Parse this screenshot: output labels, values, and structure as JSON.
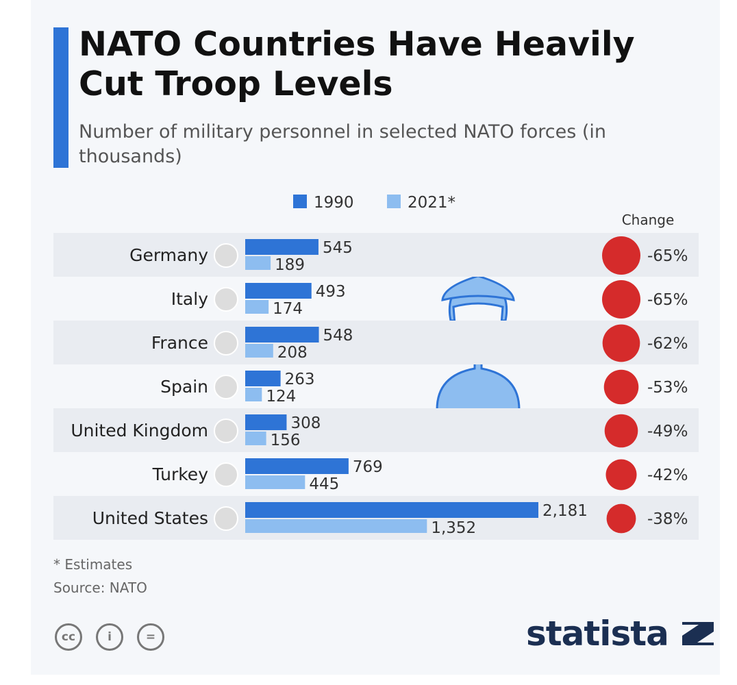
{
  "header": {
    "title": "NATO Countries Have Heavily Cut Troop Levels",
    "subtitle": "Number of military personnel in selected NATO forces (in thousands)"
  },
  "footer": {
    "note": "* Estimates",
    "source": "Source: NATO",
    "brand": "statista",
    "license_icons": [
      "cc-icon",
      "attribution-icon",
      "no-derivatives-icon"
    ]
  },
  "colors": {
    "y1990": "#2e74d6",
    "y2021": "#8dbdf0",
    "change": "#d52b2b",
    "accent": "#2e74d6"
  },
  "chart_data": {
    "type": "bar",
    "orientation": "horizontal",
    "title": "NATO Countries Have Heavily Cut Troop Levels",
    "subtitle": "Number of military personnel in selected NATO forces (in thousands)",
    "categories": [
      "Germany",
      "Italy",
      "France",
      "Spain",
      "United Kingdom",
      "Turkey",
      "United States"
    ],
    "series": [
      {
        "name": "1990",
        "values": [
          545,
          493,
          548,
          263,
          308,
          769,
          2181
        ],
        "labels": [
          "545",
          "493",
          "548",
          "263",
          "308",
          "769",
          "2,181"
        ]
      },
      {
        "name": "2021*",
        "values": [
          189,
          174,
          208,
          124,
          156,
          445,
          1352
        ],
        "labels": [
          "189",
          "174",
          "208",
          "124",
          "156",
          "445",
          "1,352"
        ]
      }
    ],
    "change_header": "Change",
    "change": [
      -65,
      -65,
      -62,
      -53,
      -49,
      -42,
      -38
    ],
    "change_labels": [
      "-65%",
      "-65%",
      "-62%",
      "-53%",
      "-49%",
      "-42%",
      "-38%"
    ],
    "legend": [
      "1990",
      "2021*"
    ],
    "legend_position": "top-center",
    "xlim": [
      0,
      2181
    ],
    "grid": false
  }
}
